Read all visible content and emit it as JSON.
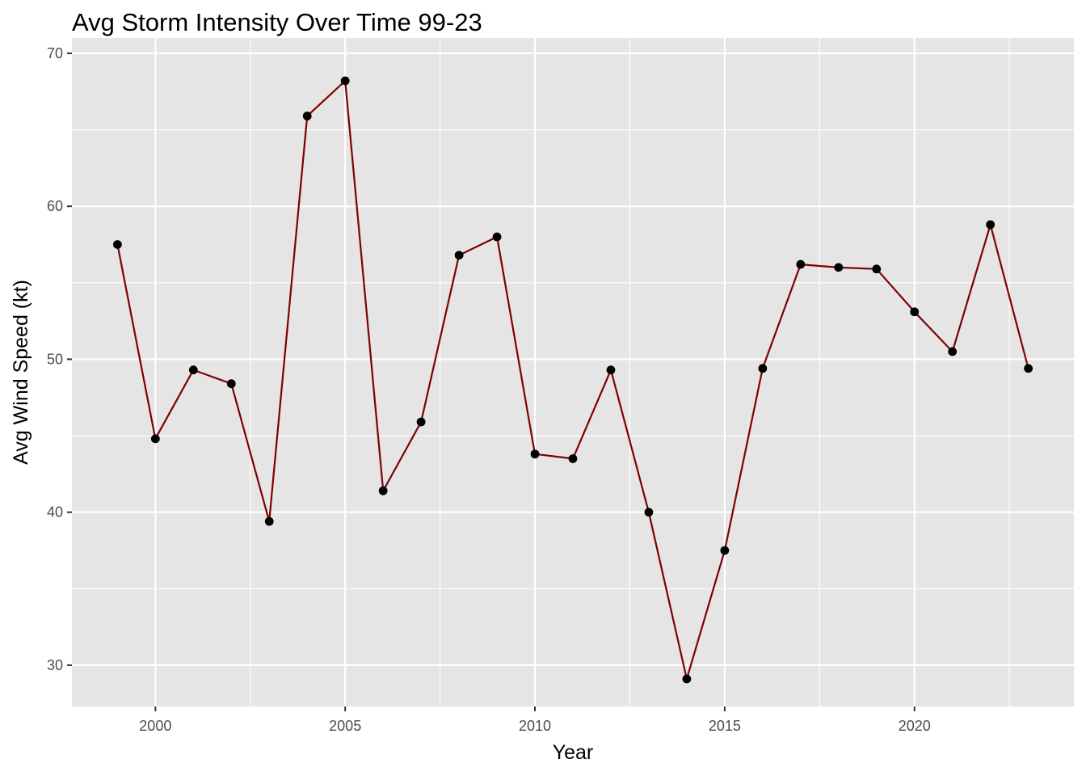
{
  "chart_data": {
    "type": "line",
    "title": "Avg Storm Intensity Over Time 99-23",
    "xlabel": "Year",
    "ylabel": "Avg Wind Speed (kt)",
    "xlim": [
      1997.8,
      2024.2
    ],
    "ylim": [
      27.3,
      71.0
    ],
    "x_ticks": [
      2000,
      2005,
      2010,
      2015,
      2020
    ],
    "y_ticks": [
      30,
      40,
      50,
      60,
      70
    ],
    "grid": true,
    "legend": "none",
    "colors": {
      "panel": "#e5e5e5",
      "grid": "#ffffff",
      "line": "#7f0000",
      "point": "#000000"
    },
    "series": [
      {
        "x": [
          1999,
          2000,
          2001,
          2002,
          2003,
          2004,
          2005,
          2006,
          2007,
          2008,
          2009,
          2010,
          2011,
          2012,
          2013,
          2014,
          2015,
          2016,
          2017,
          2018,
          2019,
          2020,
          2021,
          2022,
          2023
        ],
        "values": [
          57.5,
          44.8,
          49.3,
          48.4,
          39.4,
          65.9,
          68.2,
          41.4,
          45.9,
          56.8,
          58.0,
          43.8,
          43.5,
          49.3,
          40.0,
          29.1,
          37.5,
          49.4,
          56.2,
          56.0,
          55.9,
          53.1,
          50.5,
          58.8,
          49.4
        ]
      }
    ]
  }
}
